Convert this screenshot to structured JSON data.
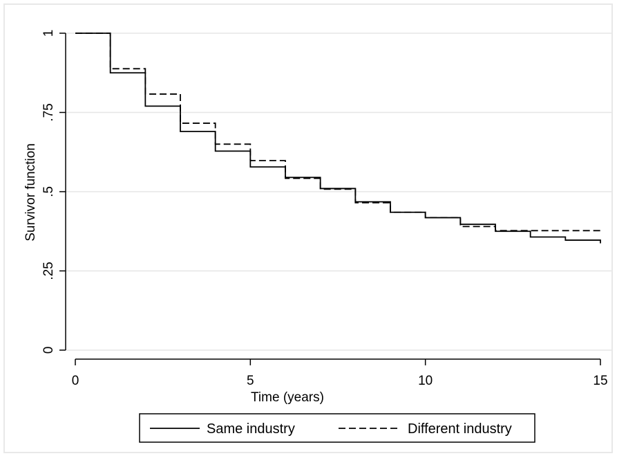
{
  "chart_data": {
    "type": "line",
    "step": true,
    "xlabel": "Time (years)",
    "ylabel": "Survivor function",
    "xlim": [
      0,
      15
    ],
    "ylim": [
      0,
      1
    ],
    "x_ticks": [
      {
        "value": 0,
        "label": "0"
      },
      {
        "value": 5,
        "label": "5"
      },
      {
        "value": 10,
        "label": "10"
      },
      {
        "value": 15,
        "label": "15"
      }
    ],
    "y_ticks": [
      {
        "value": 0,
        "label": "0"
      },
      {
        "value": 0.25,
        "label": ".25"
      },
      {
        "value": 0.5,
        "label": ".5"
      },
      {
        "value": 0.75,
        "label": ".75"
      },
      {
        "value": 1,
        "label": "1"
      }
    ],
    "grid": "horizontal",
    "legend_position": "bottom",
    "series": [
      {
        "name": "Same industry",
        "style": "solid",
        "color": "#000000",
        "x": [
          0,
          1,
          2,
          3,
          4,
          5,
          6,
          7,
          8,
          9,
          10,
          11,
          12,
          13,
          14,
          15
        ],
        "y": [
          1.0,
          0.875,
          0.77,
          0.69,
          0.628,
          0.578,
          0.545,
          0.51,
          0.468,
          0.435,
          0.418,
          0.397,
          0.375,
          0.357,
          0.347,
          0.337
        ]
      },
      {
        "name": "Different industry",
        "style": "dashed",
        "color": "#000000",
        "x": [
          0,
          1,
          2,
          3,
          4,
          5,
          6,
          7,
          8,
          9,
          10,
          11,
          12,
          13,
          14,
          15
        ],
        "y": [
          1.0,
          0.888,
          0.808,
          0.716,
          0.65,
          0.598,
          0.542,
          0.508,
          0.465,
          0.435,
          0.418,
          0.39,
          0.377,
          0.377,
          0.377,
          0.377
        ]
      }
    ]
  }
}
